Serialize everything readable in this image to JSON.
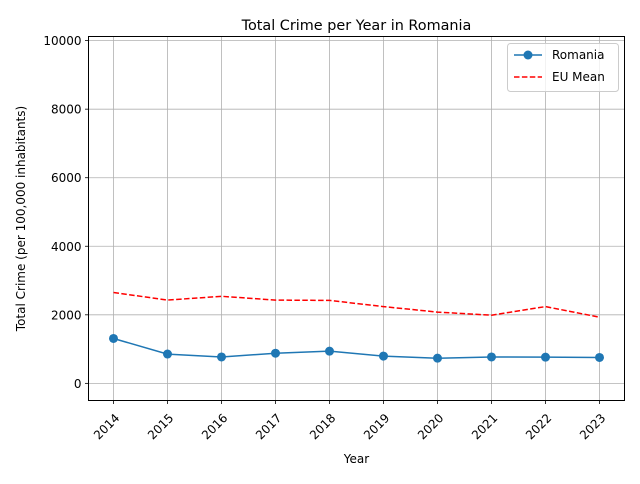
{
  "chart_data": {
    "type": "line",
    "title": "Total Crime per Year in Romania",
    "xlabel": "Year",
    "ylabel": "Total Crime (per 100,000 inhabitants)",
    "categories": [
      "2014",
      "2015",
      "2016",
      "2017",
      "2018",
      "2019",
      "2020",
      "2021",
      "2022",
      "2023"
    ],
    "ylim": [
      -500,
      10120
    ],
    "yticks": [
      "0",
      "2000",
      "4000",
      "6000",
      "8000",
      "10000"
    ],
    "ytick_values": [
      0,
      2000,
      4000,
      6000,
      8000,
      10000
    ],
    "grid": true,
    "legend_position": "top-right",
    "series": [
      {
        "name": "Romania",
        "values": [
          1310,
          855,
          770,
          880,
          940,
          795,
          735,
          770,
          765,
          755
        ],
        "color": "#1f77b4",
        "style": "solid",
        "marker": "circle"
      },
      {
        "name": "EU Mean",
        "values": [
          2650,
          2430,
          2540,
          2430,
          2420,
          2240,
          2080,
          1990,
          2240,
          1930
        ],
        "color": "#ff0000",
        "style": "dashed",
        "marker": "none"
      }
    ]
  }
}
